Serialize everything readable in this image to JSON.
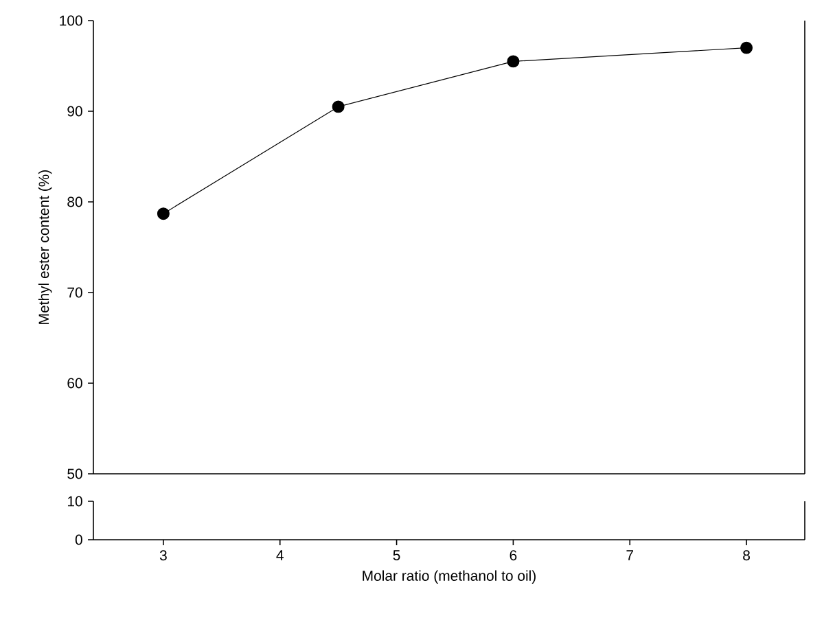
{
  "chart_data": [
    {
      "type": "line",
      "ylabel": "Methyl ester content (%)",
      "x": [
        3,
        4.5,
        6,
        8
      ],
      "values": [
        78.7,
        90.5,
        95.5,
        97.0
      ],
      "color": "#000000",
      "marker": "circle",
      "line_style": "solid",
      "xlim": [
        2.4,
        8.5
      ],
      "ylim": [
        50,
        100
      ],
      "yticks": [
        50,
        60,
        70,
        80,
        90,
        100
      ],
      "tick_labels": "y"
    },
    {
      "type": "line",
      "xlabel": "Molar ratio (methanol to oil)",
      "xlim": [
        2.4,
        8.5
      ],
      "xticks": [
        3,
        4,
        5,
        6,
        7,
        8
      ],
      "ylim": [
        0,
        10
      ],
      "yticks": [
        0,
        10
      ]
    }
  ]
}
